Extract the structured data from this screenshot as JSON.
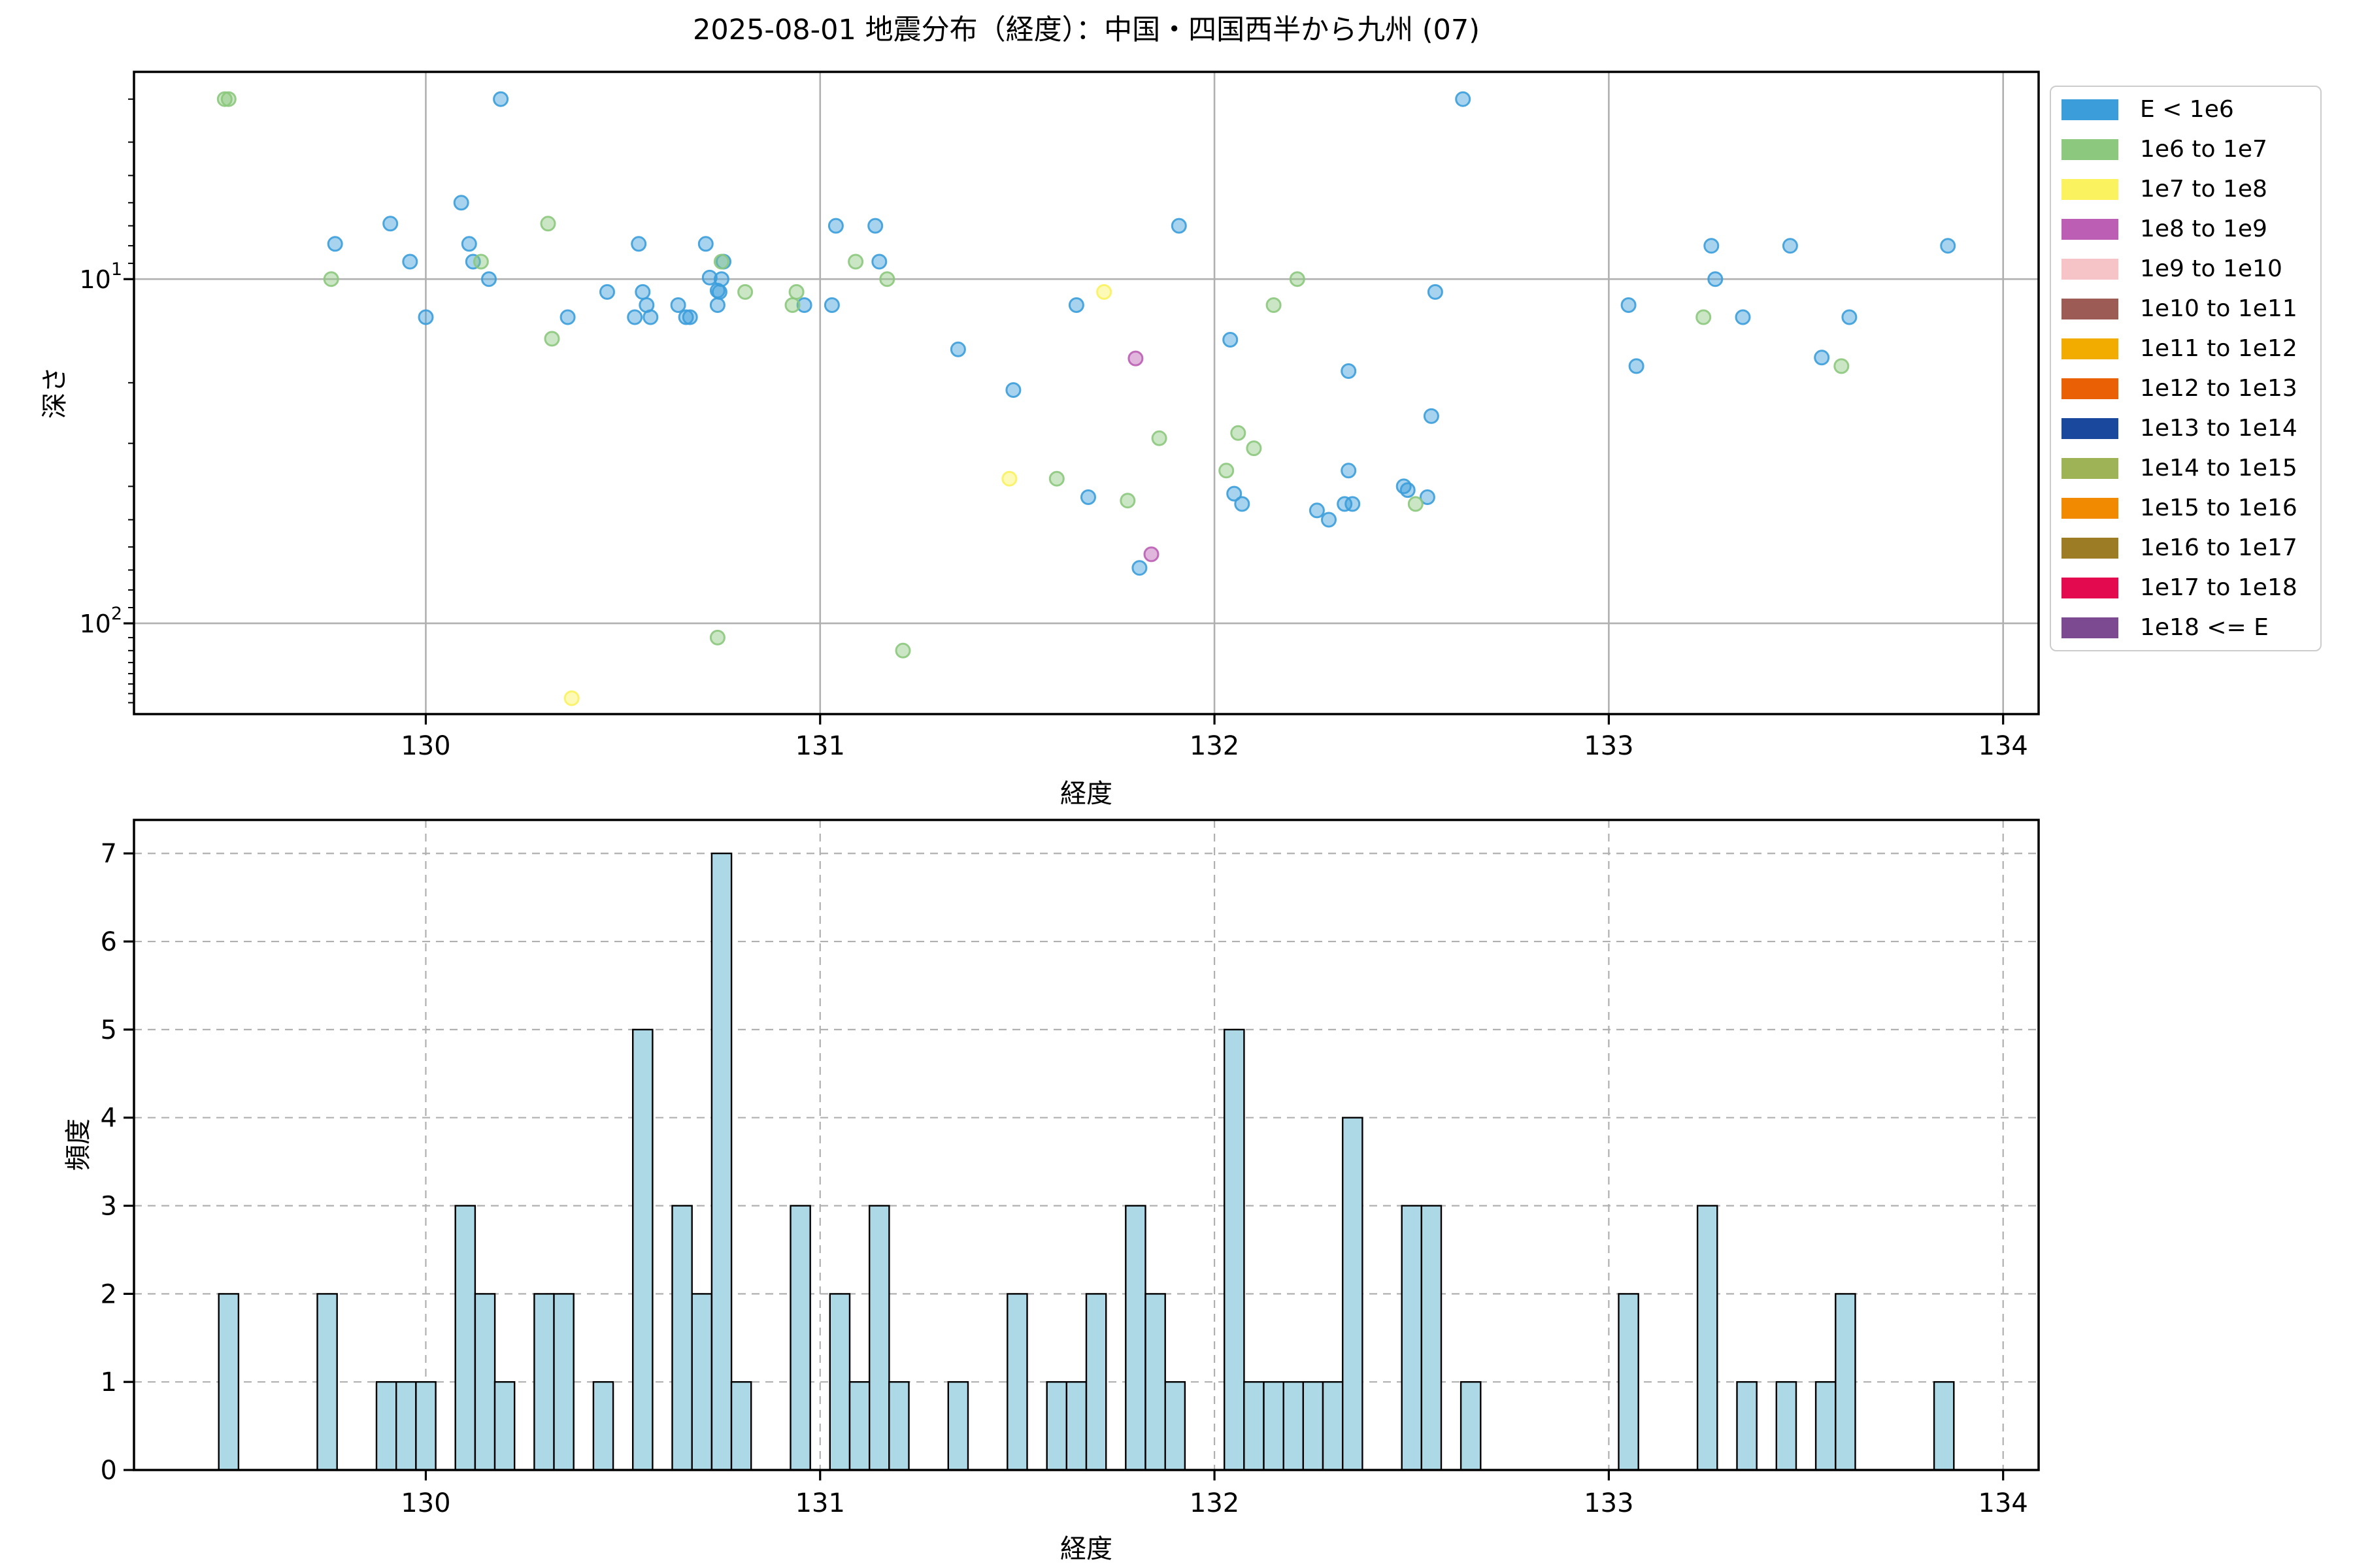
{
  "title": "2025-08-01 地震分布（経度）：中国・四国西半から九州 (07)",
  "legend": {
    "items": [
      {
        "label": "E < 1e6",
        "color": "#3B9DDA"
      },
      {
        "label": "1e6 to 1e7",
        "color": "#8CC87D"
      },
      {
        "label": "1e7 to 1e8",
        "color": "#FAF25F"
      },
      {
        "label": "1e8 to 1e9",
        "color": "#BB5EB4"
      },
      {
        "label": "1e9 to 1e10",
        "color": "#F6C3C6"
      },
      {
        "label": "1e10 to 1e11",
        "color": "#9D5B55"
      },
      {
        "label": "1e11 to 1e12",
        "color": "#F2AC00"
      },
      {
        "label": "1e12 to 1e13",
        "color": "#E96104"
      },
      {
        "label": "1e13 to 1e14",
        "color": "#1A489C"
      },
      {
        "label": "1e14 to 1e15",
        "color": "#9EB356"
      },
      {
        "label": "1e15 to 1e16",
        "color": "#F18A00"
      },
      {
        "label": "1e16 to 1e17",
        "color": "#9C7C25"
      },
      {
        "label": "1e17 to 1e18",
        "color": "#E40A50"
      },
      {
        "label": "1e18 <= E",
        "color": "#7C4A91"
      }
    ]
  },
  "style": {
    "background": "#FFFFFF",
    "grid_color": "#B0B0B0",
    "spine_color": "#000000",
    "bar_fill": "#ADD8E6",
    "bar_edge": "#000000"
  },
  "chart_data": [
    {
      "type": "scatter",
      "xlabel": "経度",
      "ylabel": "深さ",
      "x_range": [
        129.26,
        134.09
      ],
      "y_range_depth": [
        2.5,
        183.5
      ],
      "y_scale": "log",
      "y_inverted": true,
      "grid": true,
      "xticks": [
        130,
        131,
        132,
        133,
        134
      ],
      "yticks": [
        10,
        100
      ],
      "yticks_minor": [
        3,
        4,
        5,
        6,
        7,
        8,
        9,
        20,
        30,
        40,
        50,
        60,
        70,
        80,
        90,
        110,
        120,
        130,
        140,
        150,
        160,
        170
      ],
      "series": [
        {
          "name": "E < 1e6",
          "color": "#3B9DDA",
          "points": [
            [
              129.77,
              7.9
            ],
            [
              129.91,
              6.9
            ],
            [
              129.96,
              8.9
            ],
            [
              130.0,
              12.9
            ],
            [
              130.09,
              6.0
            ],
            [
              130.11,
              7.9
            ],
            [
              130.12,
              8.9
            ],
            [
              130.16,
              10.0
            ],
            [
              130.19,
              3.0
            ],
            [
              130.36,
              12.9
            ],
            [
              130.46,
              10.9
            ],
            [
              130.53,
              12.9
            ],
            [
              130.54,
              7.9
            ],
            [
              130.55,
              10.9
            ],
            [
              130.56,
              11.9
            ],
            [
              130.57,
              12.9
            ],
            [
              130.64,
              11.9
            ],
            [
              130.66,
              12.9
            ],
            [
              130.67,
              12.9
            ],
            [
              130.71,
              7.9
            ],
            [
              130.72,
              9.9
            ],
            [
              130.755,
              8.9
            ],
            [
              130.75,
              10.0
            ],
            [
              130.74,
              10.8
            ],
            [
              130.745,
              10.9
            ],
            [
              130.74,
              11.9
            ],
            [
              130.96,
              11.9
            ],
            [
              131.04,
              7.0
            ],
            [
              131.03,
              11.9
            ],
            [
              131.14,
              7.0
            ],
            [
              131.15,
              8.9
            ],
            [
              131.35,
              16.0
            ],
            [
              131.49,
              21.0
            ],
            [
              131.65,
              11.9
            ],
            [
              131.68,
              43
            ],
            [
              131.81,
              69
            ],
            [
              131.91,
              7.0
            ],
            [
              132.04,
              15.0
            ],
            [
              132.05,
              42
            ],
            [
              132.07,
              45
            ],
            [
              132.26,
              47
            ],
            [
              132.29,
              50
            ],
            [
              132.33,
              45
            ],
            [
              132.35,
              45
            ],
            [
              132.34,
              36
            ],
            [
              132.34,
              18.5
            ],
            [
              132.48,
              40
            ],
            [
              132.49,
              41
            ],
            [
              132.54,
              43
            ],
            [
              132.55,
              25
            ],
            [
              132.56,
              10.9
            ],
            [
              132.63,
              3.0
            ],
            [
              133.05,
              11.9
            ],
            [
              133.07,
              17.9
            ],
            [
              133.26,
              8.0
            ],
            [
              133.27,
              10.0
            ],
            [
              133.34,
              12.9
            ],
            [
              133.46,
              8.0
            ],
            [
              133.54,
              16.9
            ],
            [
              133.61,
              12.9
            ],
            [
              133.86,
              8.0
            ]
          ]
        },
        {
          "name": "1e6 to 1e7",
          "color": "#8CC87D",
          "points": [
            [
              129.49,
              3.0
            ],
            [
              129.5,
              3.0
            ],
            [
              129.76,
              10.0
            ],
            [
              130.14,
              8.9
            ],
            [
              130.31,
              6.9
            ],
            [
              130.32,
              14.9
            ],
            [
              130.75,
              8.9
            ],
            [
              130.74,
              110
            ],
            [
              130.81,
              10.9
            ],
            [
              130.93,
              11.9
            ],
            [
              130.94,
              10.9
            ],
            [
              131.09,
              8.9
            ],
            [
              131.17,
              10.0
            ],
            [
              131.21,
              120
            ],
            [
              131.6,
              38
            ],
            [
              131.78,
              44
            ],
            [
              131.86,
              29
            ],
            [
              132.03,
              36
            ],
            [
              132.06,
              28
            ],
            [
              132.1,
              31
            ],
            [
              132.15,
              11.9
            ],
            [
              132.21,
              10.0
            ],
            [
              132.51,
              45
            ],
            [
              133.24,
              12.9
            ],
            [
              133.59,
              17.9
            ]
          ]
        },
        {
          "name": "1e7 to 1e8",
          "color": "#FAF25F",
          "points": [
            [
              130.37,
              165
            ],
            [
              131.48,
              38
            ],
            [
              131.72,
              10.9
            ]
          ]
        },
        {
          "name": "1e8 to 1e9",
          "color": "#BB5EB4",
          "points": [
            [
              131.8,
              17.0
            ],
            [
              131.84,
              63
            ]
          ]
        }
      ]
    },
    {
      "type": "bar",
      "xlabel": "経度",
      "ylabel": "頻度",
      "x_range": [
        129.26,
        134.09
      ],
      "y_range": [
        0,
        7.38
      ],
      "grid": true,
      "grid_style": "dashed",
      "xticks": [
        130,
        131,
        132,
        133,
        134
      ],
      "yticks": [
        0,
        1,
        2,
        3,
        4,
        5,
        6,
        7
      ],
      "bin_width": 0.05,
      "bins": [
        [
          129.5,
          2
        ],
        [
          129.75,
          2
        ],
        [
          129.9,
          1
        ],
        [
          129.95,
          1
        ],
        [
          130.0,
          1
        ],
        [
          130.1,
          3
        ],
        [
          130.15,
          2
        ],
        [
          130.2,
          1
        ],
        [
          130.3,
          2
        ],
        [
          130.35,
          2
        ],
        [
          130.45,
          1
        ],
        [
          130.55,
          5
        ],
        [
          130.65,
          3
        ],
        [
          130.7,
          2
        ],
        [
          130.75,
          7
        ],
        [
          130.8,
          1
        ],
        [
          130.95,
          3
        ],
        [
          131.05,
          2
        ],
        [
          131.1,
          1
        ],
        [
          131.15,
          3
        ],
        [
          131.2,
          1
        ],
        [
          131.35,
          1
        ],
        [
          131.5,
          2
        ],
        [
          131.6,
          1
        ],
        [
          131.65,
          1
        ],
        [
          131.7,
          2
        ],
        [
          131.8,
          3
        ],
        [
          131.85,
          2
        ],
        [
          131.9,
          1
        ],
        [
          132.05,
          5
        ],
        [
          132.1,
          1
        ],
        [
          132.15,
          1
        ],
        [
          132.2,
          1
        ],
        [
          132.25,
          1
        ],
        [
          132.3,
          1
        ],
        [
          132.35,
          4
        ],
        [
          132.5,
          3
        ],
        [
          132.55,
          3
        ],
        [
          132.65,
          1
        ],
        [
          133.05,
          2
        ],
        [
          133.25,
          3
        ],
        [
          133.35,
          1
        ],
        [
          133.45,
          1
        ],
        [
          133.55,
          1
        ],
        [
          133.6,
          2
        ],
        [
          133.85,
          1
        ]
      ]
    }
  ]
}
